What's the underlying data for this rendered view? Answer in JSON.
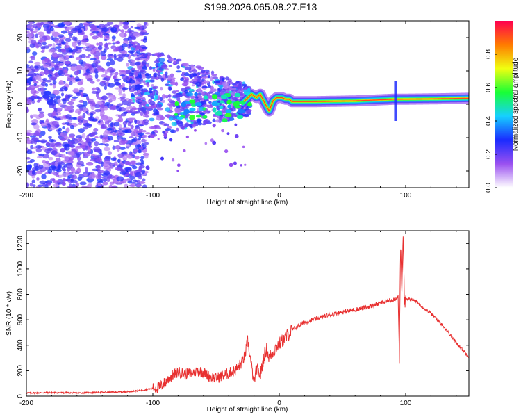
{
  "title": "S199.2026.065.08.27.E13",
  "colors": {
    "snr_line": "#e83030",
    "background": "#ffffff"
  },
  "chart_data": [
    {
      "type": "heatmap",
      "xlabel": "Height of straight line (km)",
      "ylabel": "Frequency (Hz)",
      "xlim": [
        -200,
        150
      ],
      "ylim": [
        -25,
        25
      ],
      "x_ticks": [
        -200,
        -100,
        0,
        100
      ],
      "y_ticks": [
        -20,
        -10,
        0,
        10,
        20
      ],
      "colorbar": {
        "label": "Normalized spectral amplitude",
        "range": [
          0,
          1
        ],
        "ticks": [
          "0.0",
          "0.2",
          "0.4",
          "0.6",
          "0.8"
        ],
        "colormap": [
          "#ffffff",
          "#9a50f0",
          "#1a2bff",
          "#16d0ff",
          "#18ff35",
          "#f0ff10",
          "#ff7a00",
          "#ff0050"
        ]
      },
      "features": [
        {
          "name": "noise scatter",
          "x_range": [
            -200,
            -110
          ],
          "y_range": [
            -25,
            25
          ],
          "amplitude": 0.15
        },
        {
          "name": "transition",
          "x_range": [
            -110,
            -20
          ],
          "center_y": 5,
          "amplitude": 0.3
        },
        {
          "name": "ridge",
          "x_range": [
            -20,
            150
          ],
          "center_y": 1,
          "amplitude": 0.9
        }
      ],
      "ridge": {
        "x": [
          -30,
          -22,
          -18,
          -15,
          -11,
          -8,
          -5,
          -2,
          2,
          5,
          8,
          10,
          30,
          60,
          90,
          95,
          120,
          150
        ],
        "y": [
          0,
          3,
          2,
          3,
          0,
          -2,
          1,
          2,
          2,
          1.5,
          1.5,
          0.8,
          0.8,
          1,
          1.5,
          1.5,
          1.6,
          1.8
        ]
      }
    },
    {
      "type": "line",
      "xlabel": "Height of straight line (km)",
      "ylabel": "SNR (10 * v/v)",
      "xlim": [
        -200,
        150
      ],
      "ylim": [
        0,
        1300
      ],
      "x_ticks": [
        -200,
        -100,
        0,
        100
      ],
      "y_ticks": [
        0,
        200,
        400,
        600,
        800,
        1000,
        1200
      ],
      "series": [
        {
          "name": "SNR",
          "x": [
            -200,
            -180,
            -160,
            -140,
            -120,
            -110,
            -100,
            -95,
            -90,
            -85,
            -80,
            -75,
            -70,
            -65,
            -60,
            -55,
            -50,
            -45,
            -40,
            -35,
            -30,
            -27,
            -25,
            -22,
            -20,
            -18,
            -16,
            -15,
            -12,
            -10,
            -8,
            -5,
            -2,
            0,
            5,
            10,
            15,
            20,
            30,
            40,
            50,
            60,
            70,
            80,
            90,
            94,
            95,
            96,
            97,
            98,
            99,
            100,
            105,
            110,
            120,
            130,
            140,
            150
          ],
          "values": [
            25,
            28,
            25,
            30,
            35,
            45,
            60,
            70,
            110,
            160,
            190,
            175,
            180,
            200,
            190,
            150,
            140,
            160,
            180,
            200,
            260,
            320,
            440,
            240,
            100,
            220,
            180,
            160,
            320,
            370,
            300,
            350,
            390,
            410,
            460,
            520,
            550,
            580,
            610,
            640,
            660,
            680,
            700,
            730,
            760,
            780,
            300,
            1180,
            800,
            1290,
            740,
            770,
            760,
            730,
            650,
            550,
            420,
            310
          ]
        }
      ]
    }
  ]
}
